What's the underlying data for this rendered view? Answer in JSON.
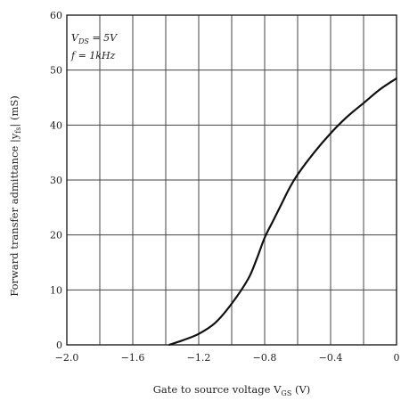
{
  "chart_data": {
    "type": "line",
    "title": "",
    "xlabel": "Gate to source voltage  V",
    "xlabel_sub": "GS",
    "xlabel_unit": " (V)",
    "ylabel": "Forward transfer admittance  |y",
    "ylabel_sub": "fs",
    "ylabel_unit": "| (mS)",
    "xlim": [
      -2.0,
      0
    ],
    "ylim": [
      0,
      60
    ],
    "x_ticks": [
      -2.0,
      -1.6,
      -1.2,
      -0.8,
      -0.4,
      0
    ],
    "x_tick_labels": [
      "−2.0",
      "−1.6",
      "−1.2",
      "−0.8",
      "−0.4",
      "0"
    ],
    "y_ticks": [
      0,
      10,
      20,
      30,
      40,
      50,
      60
    ],
    "y_tick_labels": [
      "0",
      "10",
      "20",
      "30",
      "40",
      "50",
      "60"
    ],
    "grid": true,
    "conditions": [
      "V",
      "DS",
      " = 5V",
      "f = 1kHz"
    ],
    "series": [
      {
        "x": [
          -1.38,
          -1.3,
          -1.2,
          -1.1,
          -1.0,
          -0.9,
          -0.85,
          -0.8,
          -0.75,
          -0.7,
          -0.65,
          -0.6,
          -0.5,
          -0.4,
          -0.3,
          -0.2,
          -0.1,
          0.0
        ],
        "y": [
          0,
          0.8,
          2,
          4,
          7.5,
          12,
          15.5,
          19.5,
          22.5,
          25.5,
          28.5,
          31,
          35,
          38.5,
          41.5,
          44,
          46.5,
          48.5
        ]
      }
    ]
  }
}
